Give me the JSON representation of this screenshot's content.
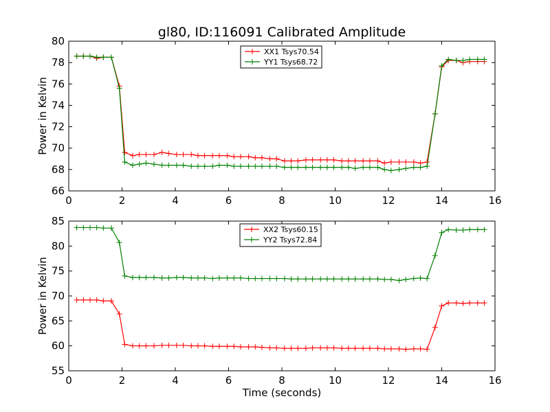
{
  "title": "gl80, ID:116091 Calibrated Amplitude",
  "colors": {
    "xx": "#ff0000",
    "yy": "#008000",
    "axis": "#000000",
    "background": "#ffffff"
  },
  "chart_data": [
    {
      "type": "line",
      "xlabel": "",
      "ylabel": "Power in Kelvin",
      "xlim": [
        0,
        16
      ],
      "ylim": [
        66,
        80
      ],
      "xticks": [
        0,
        2,
        4,
        6,
        8,
        10,
        12,
        14,
        16
      ],
      "yticks": [
        66,
        68,
        70,
        72,
        74,
        76,
        78,
        80
      ],
      "grid": false,
      "legend_position": "top-center",
      "marker": "plus",
      "x": [
        0.3,
        0.55,
        0.8,
        1.05,
        1.3,
        1.6,
        1.9,
        2.1,
        2.4,
        2.65,
        2.9,
        3.2,
        3.5,
        3.75,
        4.05,
        4.3,
        4.6,
        4.85,
        5.1,
        5.4,
        5.65,
        5.95,
        6.2,
        6.45,
        6.75,
        7.0,
        7.25,
        7.55,
        7.8,
        8.1,
        8.35,
        8.6,
        8.9,
        9.15,
        9.45,
        9.7,
        9.95,
        10.25,
        10.5,
        10.75,
        11.05,
        11.3,
        11.6,
        11.85,
        12.1,
        12.4,
        12.65,
        12.95,
        13.2,
        13.45,
        13.75,
        14.0,
        14.25,
        14.55,
        14.8,
        15.05,
        15.35,
        15.6
      ],
      "series": [
        {
          "name": "XX1 Tsys70.54",
          "color": "#ff0000",
          "values": [
            78.6,
            78.6,
            78.6,
            78.4,
            78.5,
            78.5,
            75.8,
            69.6,
            69.3,
            69.4,
            69.4,
            69.4,
            69.6,
            69.5,
            69.4,
            69.4,
            69.4,
            69.3,
            69.3,
            69.3,
            69.3,
            69.3,
            69.2,
            69.2,
            69.2,
            69.1,
            69.1,
            69.0,
            69.0,
            68.8,
            68.8,
            68.8,
            68.9,
            68.9,
            68.9,
            68.9,
            68.9,
            68.8,
            68.8,
            68.8,
            68.8,
            68.8,
            68.8,
            68.6,
            68.7,
            68.7,
            68.7,
            68.7,
            68.6,
            68.7,
            73.2,
            77.6,
            78.2,
            78.2,
            78.0,
            78.1,
            78.1,
            78.1
          ]
        },
        {
          "name": "YY1 Tsys68.72",
          "color": "#008000",
          "values": [
            78.6,
            78.6,
            78.6,
            78.5,
            78.5,
            78.5,
            75.6,
            68.7,
            68.4,
            68.5,
            68.6,
            68.5,
            68.4,
            68.4,
            68.4,
            68.4,
            68.3,
            68.3,
            68.3,
            68.3,
            68.4,
            68.4,
            68.3,
            68.3,
            68.3,
            68.3,
            68.3,
            68.3,
            68.3,
            68.2,
            68.2,
            68.2,
            68.2,
            68.2,
            68.2,
            68.2,
            68.2,
            68.2,
            68.2,
            68.1,
            68.2,
            68.2,
            68.2,
            68.0,
            67.9,
            68.0,
            68.1,
            68.2,
            68.2,
            68.3,
            73.2,
            77.7,
            78.3,
            78.2,
            78.2,
            78.3,
            78.3,
            78.3
          ]
        }
      ]
    },
    {
      "type": "line",
      "xlabel": "Time (seconds)",
      "ylabel": "Power in Kelvin",
      "xlim": [
        0,
        16
      ],
      "ylim": [
        55,
        85
      ],
      "xticks": [
        0,
        2,
        4,
        6,
        8,
        10,
        12,
        14,
        16
      ],
      "yticks": [
        55,
        60,
        65,
        70,
        75,
        80,
        85
      ],
      "grid": false,
      "legend_position": "top-center",
      "marker": "plus",
      "x": [
        0.3,
        0.55,
        0.8,
        1.05,
        1.3,
        1.6,
        1.9,
        2.1,
        2.4,
        2.65,
        2.9,
        3.2,
        3.5,
        3.75,
        4.05,
        4.3,
        4.6,
        4.85,
        5.1,
        5.4,
        5.65,
        5.95,
        6.2,
        6.45,
        6.75,
        7.0,
        7.25,
        7.55,
        7.8,
        8.1,
        8.35,
        8.6,
        8.9,
        9.15,
        9.45,
        9.7,
        9.95,
        10.25,
        10.5,
        10.75,
        11.05,
        11.3,
        11.6,
        11.85,
        12.1,
        12.4,
        12.65,
        12.95,
        13.2,
        13.45,
        13.75,
        14.0,
        14.25,
        14.55,
        14.8,
        15.05,
        15.35,
        15.6
      ],
      "series": [
        {
          "name": "XX2 Tsys60.15",
          "color": "#ff0000",
          "values": [
            69.2,
            69.2,
            69.2,
            69.2,
            69.0,
            69.0,
            66.4,
            60.3,
            60.0,
            60.0,
            60.0,
            60.0,
            60.1,
            60.1,
            60.1,
            60.1,
            60.0,
            60.0,
            60.0,
            59.9,
            59.9,
            59.9,
            59.9,
            59.8,
            59.8,
            59.8,
            59.7,
            59.6,
            59.6,
            59.5,
            59.5,
            59.5,
            59.5,
            59.6,
            59.6,
            59.6,
            59.6,
            59.5,
            59.5,
            59.5,
            59.5,
            59.5,
            59.5,
            59.4,
            59.4,
            59.4,
            59.3,
            59.4,
            59.4,
            59.3,
            63.7,
            68.0,
            68.6,
            68.6,
            68.5,
            68.6,
            68.6,
            68.6
          ]
        },
        {
          "name": "YY2 Tsys72.84",
          "color": "#008000",
          "values": [
            83.7,
            83.7,
            83.7,
            83.7,
            83.6,
            83.6,
            80.7,
            74.0,
            73.7,
            73.7,
            73.7,
            73.7,
            73.6,
            73.6,
            73.7,
            73.7,
            73.6,
            73.6,
            73.6,
            73.5,
            73.6,
            73.6,
            73.6,
            73.6,
            73.5,
            73.5,
            73.5,
            73.5,
            73.5,
            73.5,
            73.4,
            73.4,
            73.4,
            73.4,
            73.4,
            73.4,
            73.4,
            73.4,
            73.4,
            73.4,
            73.4,
            73.4,
            73.4,
            73.3,
            73.3,
            73.1,
            73.3,
            73.5,
            73.6,
            73.5,
            78.1,
            82.7,
            83.3,
            83.2,
            83.2,
            83.3,
            83.3,
            83.3
          ]
        }
      ]
    }
  ]
}
